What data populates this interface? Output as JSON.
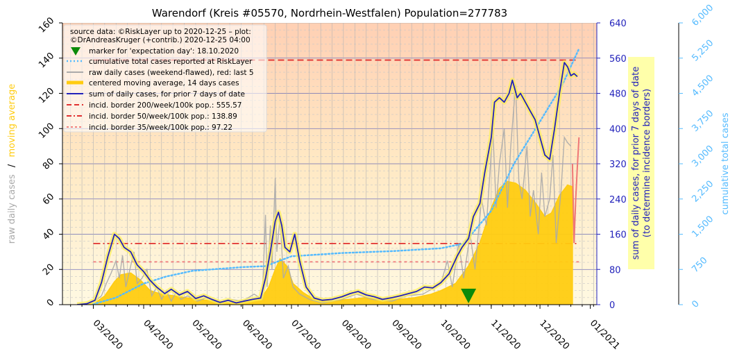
{
  "chart_data": {
    "type": "line",
    "title": "Warendorf (Kreis #05570, Nordrhein-Westfalen) Population=277783",
    "x_tick_labels": [
      "03/2020",
      "04/2020",
      "05/2020",
      "06/2020",
      "07/2020",
      "08/2020",
      "09/2020",
      "10/2020",
      "11/2020",
      "12/2020",
      "01/2021"
    ],
    "x_tick_dates": [
      "2020-03-01",
      "2020-04-01",
      "2020-05-01",
      "2020-06-01",
      "2020-07-01",
      "2020-08-01",
      "2020-09-01",
      "2020-10-01",
      "2020-11-01",
      "2020-12-01",
      "2021-01-01"
    ],
    "x_range": [
      "2020-02-11",
      "2021-01-05"
    ],
    "left_axis": {
      "label_part1": "raw daily cases",
      "label_sep": "/",
      "label_part2": "moving average",
      "ylim": [
        0,
        160
      ],
      "ticks": [
        "0",
        "20",
        "40",
        "60",
        "80",
        "100",
        "120",
        "140",
        "160"
      ]
    },
    "right_axis": {
      "label_line1": "sum of daily cases, for prior 7 days of date",
      "label_line2": "(to determine incidence borders)",
      "ylim": [
        0,
        640
      ],
      "ticks": [
        "0",
        "80",
        "160",
        "240",
        "320",
        "400",
        "480",
        "560",
        "640"
      ]
    },
    "far_right_axis": {
      "label": "cumulative total cases",
      "ylim": [
        0,
        6000
      ],
      "ticks": [
        "0",
        "750",
        "1,500",
        "2,250",
        "3,000",
        "3,750",
        "4,500",
        "5,250",
        "6,000"
      ]
    },
    "legend": {
      "position": "top-left",
      "source_line1": "source data: ©RiskLayer up to 2020-12-25 – plot:",
      "source_line2": "©DrAndreasKruger (+contrib.) 2020-12-25 04:00",
      "items": [
        "marker for 'expectation day': 18.10.2020",
        "cumulative total cases reported at RiskLayer",
        "raw daily cases (weekend-flawed), red: last 5",
        "centered moving average, 14 days cases",
        "sum of daily cases, for prior 7 days of date",
        "incid. border 200/week/100k pop.: 555.57",
        "incid. border 50/week/100k pop.: 138.89",
        "incid. border 35/week/100k pop.: 97.22"
      ]
    },
    "incidence_borders": [
      {
        "label": "200/week/100k",
        "value": 555.57,
        "color": "#e03030",
        "dash": "9,5"
      },
      {
        "label": "50/week/100k",
        "value": 138.89,
        "color": "#e03030",
        "dash": "10,4,2,4"
      },
      {
        "label": "35/week/100k",
        "value": 97.22,
        "color": "#f08080",
        "dash": "4,4"
      }
    ],
    "expectation_day": "2020-10-18",
    "sum7_series": [
      [
        "2020-02-20",
        0
      ],
      [
        "2020-02-26",
        2
      ],
      [
        "2020-03-02",
        10
      ],
      [
        "2020-03-06",
        50
      ],
      [
        "2020-03-10",
        110
      ],
      [
        "2020-03-14",
        160
      ],
      [
        "2020-03-17",
        150
      ],
      [
        "2020-03-20",
        130
      ],
      [
        "2020-03-24",
        120
      ],
      [
        "2020-03-28",
        90
      ],
      [
        "2020-04-01",
        75
      ],
      [
        "2020-04-05",
        55
      ],
      [
        "2020-04-09",
        40
      ],
      [
        "2020-04-14",
        25
      ],
      [
        "2020-04-18",
        35
      ],
      [
        "2020-04-23",
        22
      ],
      [
        "2020-04-28",
        30
      ],
      [
        "2020-05-03",
        14
      ],
      [
        "2020-05-08",
        20
      ],
      [
        "2020-05-13",
        12
      ],
      [
        "2020-05-18",
        5
      ],
      [
        "2020-05-23",
        10
      ],
      [
        "2020-05-28",
        4
      ],
      [
        "2020-06-02",
        8
      ],
      [
        "2020-06-07",
        12
      ],
      [
        "2020-06-12",
        15
      ],
      [
        "2020-06-15",
        60
      ],
      [
        "2020-06-18",
        120
      ],
      [
        "2020-06-21",
        190
      ],
      [
        "2020-06-23",
        210
      ],
      [
        "2020-06-25",
        180
      ],
      [
        "2020-06-27",
        130
      ],
      [
        "2020-06-30",
        120
      ],
      [
        "2020-07-03",
        160
      ],
      [
        "2020-07-06",
        100
      ],
      [
        "2020-07-10",
        40
      ],
      [
        "2020-07-15",
        15
      ],
      [
        "2020-07-20",
        10
      ],
      [
        "2020-07-26",
        12
      ],
      [
        "2020-08-01",
        18
      ],
      [
        "2020-08-06",
        25
      ],
      [
        "2020-08-11",
        30
      ],
      [
        "2020-08-16",
        22
      ],
      [
        "2020-08-21",
        18
      ],
      [
        "2020-08-26",
        12
      ],
      [
        "2020-09-01",
        16
      ],
      [
        "2020-09-06",
        20
      ],
      [
        "2020-09-11",
        25
      ],
      [
        "2020-09-16",
        30
      ],
      [
        "2020-09-21",
        40
      ],
      [
        "2020-09-26",
        38
      ],
      [
        "2020-10-01",
        50
      ],
      [
        "2020-10-06",
        70
      ],
      [
        "2020-10-11",
        110
      ],
      [
        "2020-10-14",
        130
      ],
      [
        "2020-10-18",
        150
      ],
      [
        "2020-10-21",
        200
      ],
      [
        "2020-10-25",
        230
      ],
      [
        "2020-10-28",
        300
      ],
      [
        "2020-11-01",
        380
      ],
      [
        "2020-11-03",
        460
      ],
      [
        "2020-11-06",
        470
      ],
      [
        "2020-11-09",
        460
      ],
      [
        "2020-11-12",
        480
      ],
      [
        "2020-11-14",
        510
      ],
      [
        "2020-11-17",
        470
      ],
      [
        "2020-11-19",
        480
      ],
      [
        "2020-11-22",
        460
      ],
      [
        "2020-11-25",
        440
      ],
      [
        "2020-11-28",
        420
      ],
      [
        "2020-12-01",
        380
      ],
      [
        "2020-12-04",
        340
      ],
      [
        "2020-12-07",
        330
      ],
      [
        "2020-12-10",
        400
      ],
      [
        "2020-12-13",
        480
      ],
      [
        "2020-12-16",
        550
      ],
      [
        "2020-12-18",
        540
      ],
      [
        "2020-12-20",
        520
      ],
      [
        "2020-12-22",
        525
      ],
      [
        "2020-12-24",
        518
      ]
    ],
    "moving_average_series": [
      [
        "2020-02-23",
        0
      ],
      [
        "2020-03-02",
        1
      ],
      [
        "2020-03-08",
        5
      ],
      [
        "2020-03-14",
        13
      ],
      [
        "2020-03-18",
        17
      ],
      [
        "2020-03-24",
        18
      ],
      [
        "2020-03-30",
        14
      ],
      [
        "2020-04-05",
        8
      ],
      [
        "2020-04-12",
        6
      ],
      [
        "2020-04-20",
        5
      ],
      [
        "2020-04-27",
        4
      ],
      [
        "2020-05-05",
        3
      ],
      [
        "2020-05-15",
        2
      ],
      [
        "2020-05-25",
        1
      ],
      [
        "2020-06-05",
        2
      ],
      [
        "2020-06-12",
        3
      ],
      [
        "2020-06-17",
        10
      ],
      [
        "2020-06-21",
        20
      ],
      [
        "2020-06-24",
        26
      ],
      [
        "2020-06-28",
        22
      ],
      [
        "2020-07-02",
        12
      ],
      [
        "2020-07-08",
        7
      ],
      [
        "2020-07-15",
        3
      ],
      [
        "2020-07-25",
        2
      ],
      [
        "2020-08-05",
        3
      ],
      [
        "2020-08-15",
        4
      ],
      [
        "2020-08-25",
        3
      ],
      [
        "2020-09-05",
        3
      ],
      [
        "2020-09-15",
        4
      ],
      [
        "2020-09-25",
        6
      ],
      [
        "2020-10-01",
        8
      ],
      [
        "2020-10-10",
        12
      ],
      [
        "2020-10-18",
        22
      ],
      [
        "2020-10-25",
        35
      ],
      [
        "2020-11-01",
        55
      ],
      [
        "2020-11-06",
        66
      ],
      [
        "2020-11-11",
        70
      ],
      [
        "2020-11-16",
        69
      ],
      [
        "2020-11-22",
        65
      ],
      [
        "2020-11-28",
        58
      ],
      [
        "2020-12-04",
        50
      ],
      [
        "2020-12-08",
        52
      ],
      [
        "2020-12-13",
        62
      ],
      [
        "2020-12-18",
        68
      ],
      [
        "2020-12-21",
        67
      ]
    ],
    "raw_daily_series": [
      [
        "2020-02-24",
        0
      ],
      [
        "2020-03-02",
        2
      ],
      [
        "2020-03-06",
        5
      ],
      [
        "2020-03-09",
        12
      ],
      [
        "2020-03-12",
        18
      ],
      [
        "2020-03-15",
        25
      ],
      [
        "2020-03-17",
        15
      ],
      [
        "2020-03-19",
        28
      ],
      [
        "2020-03-21",
        10
      ],
      [
        "2020-03-24",
        22
      ],
      [
        "2020-03-26",
        30
      ],
      [
        "2020-03-28",
        12
      ],
      [
        "2020-03-31",
        15
      ],
      [
        "2020-04-03",
        20
      ],
      [
        "2020-04-06",
        5
      ],
      [
        "2020-04-09",
        10
      ],
      [
        "2020-04-12",
        3
      ],
      [
        "2020-04-15",
        8
      ],
      [
        "2020-04-18",
        2
      ],
      [
        "2020-04-21",
        7
      ],
      [
        "2020-04-24",
        3
      ],
      [
        "2020-04-28",
        5
      ],
      [
        "2020-05-04",
        2
      ],
      [
        "2020-05-10",
        4
      ],
      [
        "2020-05-17",
        1
      ],
      [
        "2020-05-24",
        3
      ],
      [
        "2020-06-01",
        2
      ],
      [
        "2020-06-08",
        6
      ],
      [
        "2020-06-13",
        3
      ],
      [
        "2020-06-15",
        51
      ],
      [
        "2020-06-16",
        10
      ],
      [
        "2020-06-18",
        45
      ],
      [
        "2020-06-19",
        20
      ],
      [
        "2020-06-21",
        72
      ],
      [
        "2020-06-22",
        30
      ],
      [
        "2020-06-24",
        50
      ],
      [
        "2020-06-26",
        15
      ],
      [
        "2020-06-29",
        22
      ],
      [
        "2020-07-02",
        10
      ],
      [
        "2020-07-06",
        6
      ],
      [
        "2020-07-12",
        3
      ],
      [
        "2020-07-20",
        1
      ],
      [
        "2020-08-01",
        3
      ],
      [
        "2020-08-10",
        6
      ],
      [
        "2020-08-20",
        3
      ],
      [
        "2020-09-01",
        2
      ],
      [
        "2020-09-10",
        5
      ],
      [
        "2020-09-20",
        6
      ],
      [
        "2020-10-01",
        12
      ],
      [
        "2020-10-05",
        25
      ],
      [
        "2020-10-08",
        10
      ],
      [
        "2020-10-12",
        35
      ],
      [
        "2020-10-15",
        15
      ],
      [
        "2020-10-19",
        40
      ],
      [
        "2020-10-22",
        20
      ],
      [
        "2020-10-26",
        60
      ],
      [
        "2020-10-29",
        45
      ],
      [
        "2020-11-02",
        100
      ],
      [
        "2020-11-04",
        55
      ],
      [
        "2020-11-06",
        80
      ],
      [
        "2020-11-09",
        100
      ],
      [
        "2020-11-11",
        55
      ],
      [
        "2020-11-13",
        90
      ],
      [
        "2020-11-16",
        125
      ],
      [
        "2020-11-18",
        70
      ],
      [
        "2020-11-20",
        60
      ],
      [
        "2020-11-23",
        90
      ],
      [
        "2020-11-25",
        50
      ],
      [
        "2020-11-27",
        65
      ],
      [
        "2020-11-30",
        40
      ],
      [
        "2020-12-02",
        75
      ],
      [
        "2020-12-04",
        50
      ],
      [
        "2020-12-07",
        60
      ],
      [
        "2020-12-09",
        85
      ],
      [
        "2020-12-11",
        35
      ],
      [
        "2020-12-14",
        65
      ],
      [
        "2020-12-16",
        95
      ],
      [
        "2020-12-18",
        92
      ],
      [
        "2020-12-20",
        90
      ]
    ],
    "raw_last5_series": [
      [
        "2020-12-21",
        80
      ],
      [
        "2020-12-22",
        35
      ],
      [
        "2020-12-23",
        60
      ],
      [
        "2020-12-24",
        78
      ],
      [
        "2020-12-25",
        95
      ]
    ],
    "cumulative_series": [
      [
        "2020-03-01",
        10
      ],
      [
        "2020-03-15",
        150
      ],
      [
        "2020-04-01",
        450
      ],
      [
        "2020-04-15",
        600
      ],
      [
        "2020-05-01",
        720
      ],
      [
        "2020-06-01",
        800
      ],
      [
        "2020-06-15",
        820
      ],
      [
        "2020-07-01",
        1030
      ],
      [
        "2020-08-01",
        1100
      ],
      [
        "2020-09-01",
        1140
      ],
      [
        "2020-10-01",
        1200
      ],
      [
        "2020-10-15",
        1300
      ],
      [
        "2020-11-01",
        2000
      ],
      [
        "2020-11-15",
        3000
      ],
      [
        "2020-12-01",
        3900
      ],
      [
        "2020-12-15",
        4700
      ],
      [
        "2020-12-25",
        5450
      ]
    ]
  },
  "colors": {
    "sum7": "#2222bb",
    "moving_average": "#ffcc11",
    "raw": "#aaaaaa",
    "raw_last5": "#ee7777",
    "cumulative": "#55bbff",
    "marker": "#0a8a0a",
    "left_axis_label_raw": "#aaaaaa",
    "left_axis_label_ma": "#ffcc11",
    "right_axis": "#2222bb",
    "far_right_axis": "#55bbff",
    "highlight_box": "#ffffaa"
  }
}
